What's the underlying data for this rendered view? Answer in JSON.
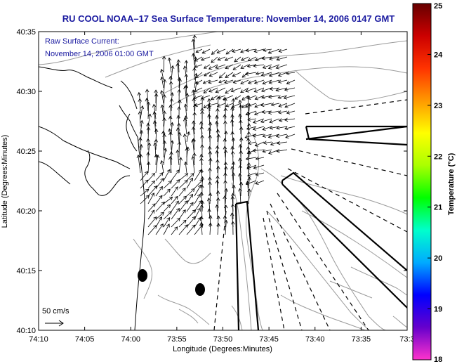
{
  "title": "RU COOL  NOAA–17  Sea Surface Temperature:  November 14, 2006 0147 GMT",
  "annotation": {
    "line1": "Raw Surface Current:",
    "line2": "November 14, 2006 01:00 GMT"
  },
  "scale": {
    "label": "50 cm/s"
  },
  "axes": {
    "xlabel": "Longitude (Degrees:Minutes)",
    "ylabel": "Latitude (Degrees:Minutes)",
    "x_ticks": [
      "74:10",
      "74:05",
      "74:00",
      "73:55",
      "73:50",
      "73:45",
      "73:40",
      "73:35",
      "73:3"
    ],
    "y_ticks": [
      "40:35",
      "40:30",
      "40:25",
      "40:20",
      "40:15",
      "40:10"
    ]
  },
  "colorbar": {
    "label": "Temperature (°C)",
    "min": 18,
    "max": 25,
    "ticks": [
      "25",
      "24",
      "23",
      "22",
      "21",
      "20",
      "19",
      "18"
    ],
    "colors": [
      "#ff33cc",
      "#6600cc",
      "#0000ff",
      "#00aaff",
      "#00ffcc",
      "#00ff00",
      "#aaff00",
      "#ffff00",
      "#ff9900",
      "#ff3300",
      "#cc0000",
      "#660000"
    ]
  },
  "colors": {
    "title": "#1a1aa0",
    "annotation": "#1a1aa0",
    "contour": "#9a9a9a"
  }
}
